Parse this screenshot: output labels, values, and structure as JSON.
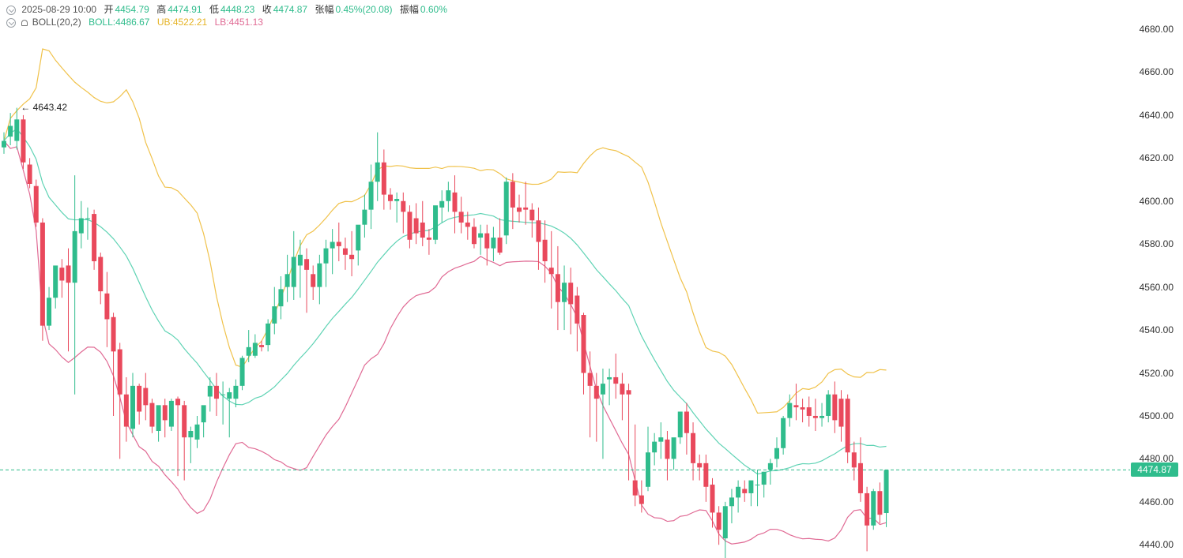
{
  "header": {
    "datetime": "2025-08-29 10:00",
    "open_label": "开",
    "open": "4454.79",
    "high_label": "高",
    "high": "4474.91",
    "low_label": "低",
    "low": "4448.23",
    "close_label": "收",
    "close": "4474.87",
    "change_label": "张幅",
    "change": "0.45%(20.08)",
    "amplitude_label": "振幅",
    "amplitude": "0.60%"
  },
  "boll": {
    "label": "BOLL(20,2)",
    "mid": "BOLL:4486.67",
    "ub": "UB:4522.21",
    "lb": "LB:4451.13"
  },
  "current_price": "4474.87",
  "max_label": "← 4643.42",
  "colors": {
    "up": "#2fbc8c",
    "down": "#e9495c",
    "mid": "#5fd3b4",
    "ub": "#f0c24b",
    "lb": "#e06a94"
  },
  "chart_data": {
    "type": "candlestick",
    "ylim": [
      4435,
      4690
    ],
    "yticks": [
      "4680.00",
      "4660.00",
      "4640.00",
      "4620.00",
      "4600.00",
      "4580.00",
      "4560.00",
      "4540.00",
      "4520.00",
      "4500.00",
      "4480.00",
      "4460.00",
      "4440.00"
    ],
    "current": 4474.87,
    "max_price": 4643.42,
    "candles": [
      [
        4625,
        4632,
        4628,
        4622
      ],
      [
        4630,
        4641,
        4635,
        4626
      ],
      [
        4628,
        4643.42,
        4638,
        4624
      ],
      [
        4638,
        4640,
        4618,
        4615
      ],
      [
        4617,
        4620,
        4608,
        4606
      ],
      [
        4607,
        4610,
        4590,
        4588
      ],
      [
        4590,
        4592,
        4542,
        4535
      ],
      [
        4542,
        4560,
        4555,
        4540
      ],
      [
        4555,
        4566,
        4570,
        4550
      ],
      [
        4569,
        4573,
        4563,
        4555
      ],
      [
        4570,
        4578,
        4562,
        4530
      ],
      [
        4562,
        4612,
        4586,
        4510
      ],
      [
        4585,
        4600,
        4592,
        4578
      ],
      [
        4592,
        4597,
        4592,
        4582
      ],
      [
        4594,
        4596,
        4572,
        4568
      ],
      [
        4574,
        4576,
        4558,
        4552
      ],
      [
        4557,
        4567,
        4545,
        4532
      ],
      [
        4546,
        4548,
        4530,
        4500
      ],
      [
        4531,
        4534,
        4510,
        4480
      ],
      [
        4510,
        4518,
        4495,
        4488
      ],
      [
        4494,
        4520,
        4514,
        4490
      ],
      [
        4514,
        4515,
        4502,
        4496
      ],
      [
        4513,
        4520,
        4505,
        4498
      ],
      [
        4506,
        4508,
        4495,
        4492
      ],
      [
        4493,
        4495,
        4505,
        4488
      ],
      [
        4505,
        4508,
        4498,
        4490
      ],
      [
        4495,
        4508,
        4507,
        4493
      ],
      [
        4508,
        4509,
        4505,
        4472
      ],
      [
        4505,
        4507,
        4490,
        4470
      ],
      [
        4490,
        4495,
        4493,
        4478
      ],
      [
        4489,
        4500,
        4496,
        4485
      ],
      [
        4497,
        4504,
        4505,
        4490
      ],
      [
        4509,
        4518,
        4514,
        4502
      ],
      [
        4514,
        4520,
        4508,
        4500
      ],
      [
        4510,
        4516,
        4510,
        4496
      ],
      [
        4508,
        4513,
        4511,
        4490
      ],
      [
        4508,
        4517,
        4514,
        4504
      ],
      [
        4514,
        4528,
        4527,
        4512
      ],
      [
        4528,
        4540,
        4532,
        4525
      ],
      [
        4528,
        4538,
        4534,
        4527
      ],
      [
        4533,
        4535,
        4532,
        4530
      ],
      [
        4533,
        4545,
        4543,
        4530
      ],
      [
        4543,
        4560,
        4551,
        4538
      ],
      [
        4551,
        4565,
        4559,
        4545
      ],
      [
        4560,
        4575,
        4566,
        4553
      ],
      [
        4560,
        4586,
        4574,
        4554
      ],
      [
        4570,
        4582,
        4575,
        4555
      ],
      [
        4573,
        4578,
        4568,
        4548
      ],
      [
        4566,
        4570,
        4560,
        4554
      ],
      [
        4560,
        4575,
        4571,
        4552
      ],
      [
        4571,
        4582,
        4578,
        4560
      ],
      [
        4578,
        4587,
        4581,
        4566
      ],
      [
        4581,
        4590,
        4579,
        4572
      ],
      [
        4578,
        4583,
        4575,
        4568
      ],
      [
        4575,
        4586,
        4573,
        4565
      ],
      [
        4577,
        4582,
        4589,
        4570
      ],
      [
        4589,
        4603,
        4596,
        4583
      ],
      [
        4596,
        4617,
        4609,
        4587
      ],
      [
        4609,
        4632,
        4618,
        4600
      ],
      [
        4618,
        4624,
        4603,
        4596
      ],
      [
        4603,
        4606,
        4600,
        4596
      ],
      [
        4600,
        4604,
        4601,
        4590
      ],
      [
        4600,
        4604,
        4595,
        4585
      ],
      [
        4595,
        4598,
        4582,
        4578
      ],
      [
        4592,
        4599,
        4585,
        4580
      ],
      [
        4590,
        4600,
        4583,
        4579
      ],
      [
        4583,
        4587,
        4582,
        4575
      ],
      [
        4582,
        4596,
        4598,
        4580
      ],
      [
        4597,
        4605,
        4600,
        4590
      ],
      [
        4600,
        4609,
        4605,
        4595
      ],
      [
        4604,
        4612,
        4595,
        4585
      ],
      [
        4595,
        4602,
        4590,
        4585
      ],
      [
        4590,
        4595,
        4588,
        4582
      ],
      [
        4588,
        4592,
        4580,
        4578
      ],
      [
        4583,
        4589,
        4585,
        4575
      ],
      [
        4585,
        4589,
        4578,
        4570
      ],
      [
        4578,
        4588,
        4583,
        4572
      ],
      [
        4583,
        4592,
        4576,
        4575
      ],
      [
        4584,
        4611,
        4609,
        4580
      ],
      [
        4609,
        4613,
        4597,
        4587
      ],
      [
        4597,
        4603,
        4595,
        4590
      ],
      [
        4597,
        4609,
        4596,
        4589
      ],
      [
        4596,
        4599,
        4591,
        4583
      ],
      [
        4591,
        4597,
        4581,
        4568
      ],
      [
        4582,
        4591,
        4572,
        4562
      ],
      [
        4569,
        4586,
        4566,
        4550
      ],
      [
        4566,
        4579,
        4553,
        4540
      ],
      [
        4553,
        4570,
        4562,
        4540
      ],
      [
        4562,
        4569,
        4552,
        4538
      ],
      [
        4556,
        4560,
        4543,
        4530
      ],
      [
        4547,
        4548,
        4520,
        4510
      ],
      [
        4520,
        4530,
        4514,
        4490
      ],
      [
        4514,
        4520,
        4508,
        4488
      ],
      [
        4510,
        4522,
        4515,
        4480
      ],
      [
        4517,
        4522,
        4518,
        4505
      ],
      [
        4518,
        4529,
        4515,
        4508
      ],
      [
        4515,
        4520,
        4510,
        4498
      ],
      [
        4512,
        4515,
        4510,
        4470
      ],
      [
        4470,
        4496,
        4463,
        4458
      ],
      [
        4463,
        4470,
        4459,
        4455
      ],
      [
        4467,
        4495,
        4483,
        4465
      ],
      [
        4483,
        4492,
        4488,
        4477
      ],
      [
        4488,
        4497,
        4490,
        4480
      ],
      [
        4489,
        4493,
        4480,
        4470
      ],
      [
        4480,
        4485,
        4490,
        4475
      ],
      [
        4490,
        4502,
        4502,
        4487
      ],
      [
        4502,
        4506,
        4492,
        4482
      ],
      [
        4492,
        4497,
        4478,
        4470
      ],
      [
        4478,
        4482,
        4476,
        4470
      ],
      [
        4478,
        4482,
        4467,
        4460
      ],
      [
        4468,
        4471,
        4455,
        4448
      ],
      [
        4455,
        4458,
        4447,
        4440
      ],
      [
        4443,
        4460,
        4458,
        4432
      ],
      [
        4458,
        4466,
        4462,
        4450
      ],
      [
        4462,
        4470,
        4467,
        4455
      ],
      [
        4466,
        4470,
        4464,
        4460
      ],
      [
        4464,
        4468,
        4470,
        4458
      ],
      [
        4468,
        4475,
        4468,
        4458
      ],
      [
        4468,
        4474,
        4474,
        4462
      ],
      [
        4475,
        4480,
        4478,
        4468
      ],
      [
        4480,
        4490,
        4485,
        4476
      ],
      [
        4485,
        4500,
        4499,
        4482
      ],
      [
        4499,
        4510,
        4506,
        4495
      ],
      [
        4505,
        4515,
        4504,
        4498
      ],
      [
        4504,
        4508,
        4503,
        4497
      ],
      [
        4504,
        4509,
        4500,
        4495
      ],
      [
        4500,
        4508,
        4499,
        4493
      ],
      [
        4499,
        4506,
        4500,
        4495
      ],
      [
        4500,
        4512,
        4510,
        4497
      ],
      [
        4510,
        4516,
        4498,
        4492
      ],
      [
        4508,
        4512,
        4495,
        4488
      ],
      [
        4508,
        4510,
        4483,
        4478
      ],
      [
        4483,
        4488,
        4476,
        4470
      ],
      [
        4478,
        4490,
        4464,
        4460
      ],
      [
        4464,
        4467,
        4449,
        4437
      ],
      [
        4449,
        4466,
        4465,
        4447
      ],
      [
        4465,
        4469,
        4454,
        4450
      ],
      [
        4454.79,
        4474.91,
        4474.87,
        4448.23
      ]
    ]
  }
}
